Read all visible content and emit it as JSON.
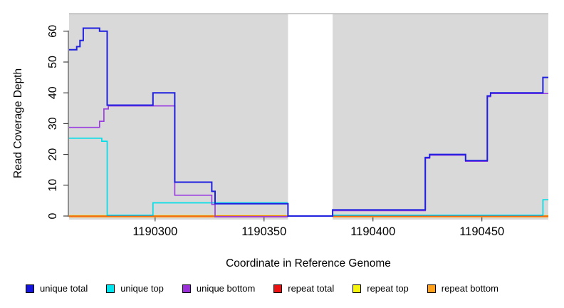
{
  "chart_data": {
    "type": "line",
    "style": "step",
    "title": "",
    "xlabel": "Coordinate in Reference Genome",
    "ylabel": "Read Coverage Depth",
    "xlim": [
      1190260.5,
      1190480.5
    ],
    "ylim": [
      0,
      66
    ],
    "x_ticks": [
      "1190300",
      "1190350",
      "1190400",
      "1190450"
    ],
    "y_ticks": [
      "0",
      "10",
      "20",
      "30",
      "40",
      "50",
      "60"
    ],
    "grid": false,
    "legend_position": "bottom",
    "plot_background": "#d9d9d9",
    "no_data_band": {
      "x0": 1190361,
      "x1": 1190381.5,
      "color": "#ffffff"
    },
    "series": [
      {
        "name": "unique total",
        "color": "#2020df",
        "segments": [
          [
            [
              1190260.5,
              54
            ],
            [
              1190264,
              55
            ],
            [
              1190265.5,
              57
            ],
            [
              1190267,
              61
            ],
            [
              1190274.5,
              60
            ],
            [
              1190278,
              36
            ],
            [
              1190299,
              40
            ],
            [
              1190309,
              11
            ],
            [
              1190326,
              8
            ],
            [
              1190327.5,
              4
            ],
            [
              1190361,
              0
            ],
            [
              1190381.5,
              2
            ],
            [
              1190424,
              19
            ],
            [
              1190426,
              20
            ],
            [
              1190442.5,
              18
            ],
            [
              1190452.5,
              39
            ],
            [
              1190454,
              40
            ],
            [
              1190478,
              45
            ],
            [
              1190480.5,
              45
            ]
          ]
        ]
      },
      {
        "name": "unique top",
        "color": "#00dfe8",
        "segments": [
          [
            [
              1190260.5,
              25
            ],
            [
              1190275.5,
              24
            ],
            [
              1190278,
              0
            ],
            [
              1190299,
              4
            ],
            [
              1190361,
              4
            ]
          ],
          [
            [
              1190381.5,
              0
            ],
            [
              1190478,
              5
            ],
            [
              1190480.5,
              5
            ]
          ]
        ]
      },
      {
        "name": "unique bottom",
        "color": "#9c3fe0",
        "segments": [
          [
            [
              1190260.5,
              29
            ],
            [
              1190274.5,
              31
            ],
            [
              1190276.5,
              35
            ],
            [
              1190278.5,
              36
            ],
            [
              1190309,
              7
            ],
            [
              1190326,
              4
            ],
            [
              1190327.5,
              0
            ],
            [
              1190361,
              0
            ]
          ],
          [
            [
              1190381.5,
              2
            ],
            [
              1190424,
              19
            ],
            [
              1190426,
              20
            ],
            [
              1190442.5,
              18
            ],
            [
              1190452.5,
              39
            ],
            [
              1190454,
              40
            ],
            [
              1190480.5,
              40
            ]
          ]
        ]
      },
      {
        "name": "repeat total",
        "color": "#e01515",
        "segments": [
          [
            [
              1190260.5,
              0
            ],
            [
              1190361,
              0
            ]
          ],
          [
            [
              1190381.5,
              0
            ],
            [
              1190480.5,
              0
            ]
          ]
        ]
      },
      {
        "name": "repeat top",
        "color": "#f2f214",
        "segments": [
          [
            [
              1190260.5,
              0
            ],
            [
              1190361,
              0
            ]
          ],
          [
            [
              1190381.5,
              0
            ],
            [
              1190480.5,
              0
            ]
          ]
        ]
      },
      {
        "name": "repeat bottom",
        "color": "#ff9d1a",
        "segments": [
          [
            [
              1190260.5,
              0
            ],
            [
              1190361,
              0
            ]
          ],
          [
            [
              1190381.5,
              0
            ],
            [
              1190480.5,
              0
            ]
          ]
        ]
      }
    ]
  },
  "legend": {
    "items": [
      {
        "label": "unique total",
        "color": "#1414dd"
      },
      {
        "label": "unique top",
        "color": "#00e5ee"
      },
      {
        "label": "unique bottom",
        "color": "#9c2fd9"
      },
      {
        "label": "repeat total",
        "color": "#ee1111"
      },
      {
        "label": "repeat top",
        "color": "#f5f511"
      },
      {
        "label": "repeat bottom",
        "color": "#ffa019"
      }
    ]
  }
}
